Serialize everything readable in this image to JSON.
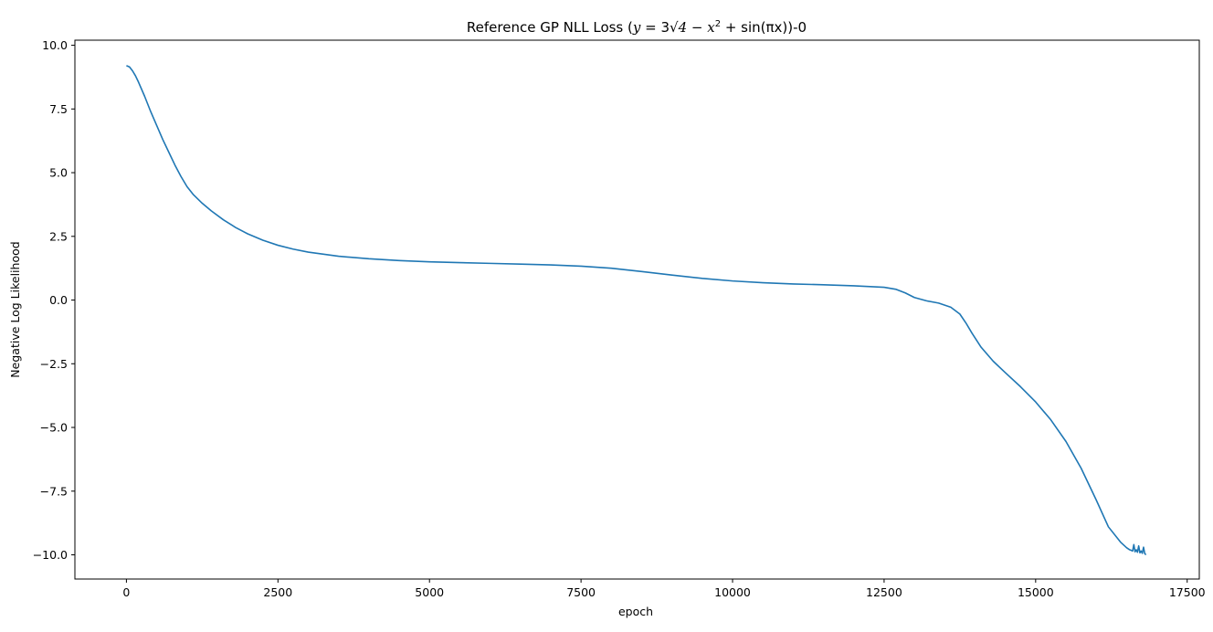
{
  "chart_data": {
    "type": "line",
    "title": {
      "prefix": "Reference GP NLL Loss (",
      "formula_y": "y",
      "formula_eq": " = 3",
      "formula_radicand": "4 − x",
      "formula_sup": "2",
      "formula_rest": " + sin(πx)",
      "suffix": ")-0"
    },
    "xlabel": "epoch",
    "ylabel": "Negative Log Likelihood",
    "xlim": [
      -850,
      17700
    ],
    "ylim": [
      -10.95,
      10.2
    ],
    "xticks": [
      0,
      2500,
      5000,
      7500,
      10000,
      12500,
      15000,
      17500
    ],
    "xtick_labels": [
      "0",
      "2500",
      "5000",
      "7500",
      "10000",
      "12500",
      "15000",
      "17500"
    ],
    "yticks": [
      10.0,
      7.5,
      5.0,
      2.5,
      0.0,
      -2.5,
      -5.0,
      -7.5,
      -10.0
    ],
    "ytick_labels": [
      "10.0",
      "7.5",
      "5.0",
      "2.5",
      "0.0",
      "−2.5",
      "−5.0",
      "−7.5",
      "−10.0"
    ],
    "grid": false,
    "line_color": "#1f77b4",
    "series": [
      {
        "x": [
          0,
          50,
          100,
          150,
          200,
          300,
          400,
          500,
          600,
          700,
          800,
          900,
          1000,
          1100,
          1250,
          1400,
          1600,
          1800,
          2000,
          2250,
          2500,
          2750,
          3000,
          3500,
          4000,
          4500,
          5000,
          5500,
          6000,
          6500,
          7000,
          7500,
          8000,
          8500,
          9000,
          9500,
          10000,
          10500,
          11000,
          11500,
          12000,
          12500,
          12700,
          12850,
          13000,
          13200,
          13400,
          13600,
          13750,
          13850,
          13950,
          14100,
          14300,
          14500,
          14750,
          15000,
          15250,
          15500,
          15750,
          16000,
          16200,
          16400,
          16500,
          16550,
          16600,
          16620,
          16640,
          16660,
          16680,
          16700,
          16720,
          16740,
          16760,
          16780,
          16800,
          16820
        ],
        "y": [
          9.2,
          9.15,
          9.0,
          8.8,
          8.55,
          8.0,
          7.4,
          6.85,
          6.3,
          5.8,
          5.3,
          4.85,
          4.45,
          4.15,
          3.8,
          3.5,
          3.15,
          2.85,
          2.6,
          2.35,
          2.15,
          2.0,
          1.88,
          1.72,
          1.62,
          1.55,
          1.5,
          1.47,
          1.44,
          1.41,
          1.38,
          1.33,
          1.25,
          1.12,
          0.98,
          0.85,
          0.75,
          0.68,
          0.63,
          0.6,
          0.56,
          0.5,
          0.42,
          0.28,
          0.1,
          -0.03,
          -0.12,
          -0.28,
          -0.55,
          -0.9,
          -1.3,
          -1.85,
          -2.4,
          -2.85,
          -3.4,
          -4.0,
          -4.7,
          -5.55,
          -6.6,
          -7.85,
          -8.9,
          -9.5,
          -9.72,
          -9.8,
          -9.85,
          -9.6,
          -9.88,
          -9.8,
          -9.9,
          -9.65,
          -9.92,
          -9.85,
          -9.94,
          -9.7,
          -9.95,
          -10.0
        ]
      }
    ]
  }
}
